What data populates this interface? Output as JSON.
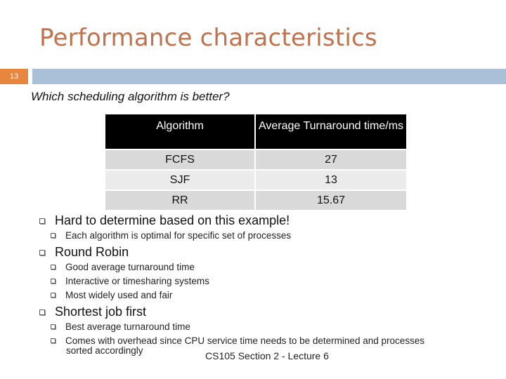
{
  "slide": {
    "title": "Performance characteristics",
    "number": "13",
    "question": "Which scheduling algorithm is better?",
    "footer": "CS105 Section 2 - Lecture 6"
  },
  "table": {
    "headers": [
      "Algorithm",
      "Average  Turnaround time/ms"
    ],
    "rows": [
      {
        "algorithm": "FCFS",
        "value": "27"
      },
      {
        "algorithm": "SJF",
        "value": "13"
      },
      {
        "algorithm": "RR",
        "value": "15.67"
      }
    ]
  },
  "bullets": [
    {
      "text": "Hard to determine based on this example!",
      "subs": [
        "Each algorithm is optimal for specific set of processes"
      ]
    },
    {
      "text": "Round Robin",
      "subs": [
        "Good average turnaround time",
        "Interactive or timesharing systems",
        "Most widely used and fair"
      ]
    },
    {
      "text": "Shortest job first",
      "subs": [
        "Best average turnaround time",
        "Comes with overhead since CPU service time needs to be determined and processes",
        "sorted accordingly"
      ]
    }
  ],
  "icons": {
    "bullet": "hollow-square-bullet-icon"
  },
  "colors": {
    "title": "#c0714e",
    "badge": "#e8863f",
    "bar": "#a9c0d8",
    "table_header": "#000000"
  }
}
